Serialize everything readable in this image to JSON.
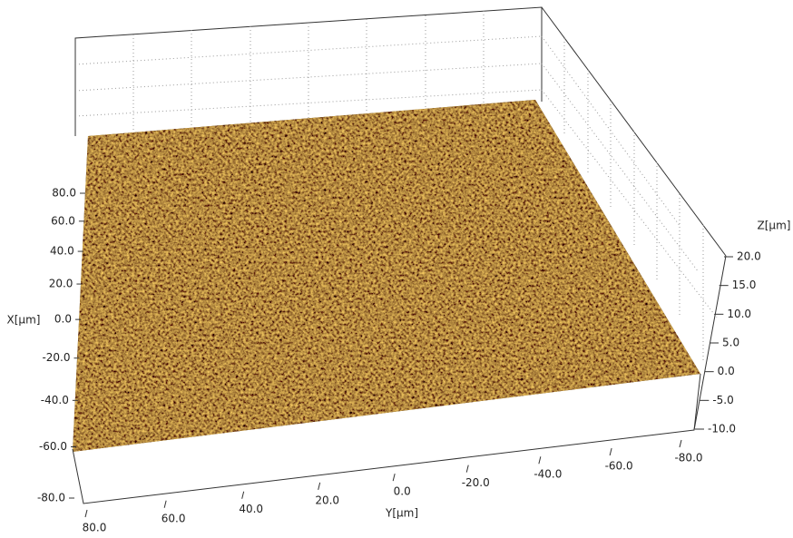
{
  "chart_data": {
    "type": "surface",
    "x_label": "X[μm]",
    "y_label": "Y[μm]",
    "z_label": "Z[μm]",
    "xlim": [
      -80,
      80
    ],
    "xticks": [
      {
        "value": -80,
        "label": "-80.0"
      },
      {
        "value": -60,
        "label": "-60.0"
      },
      {
        "value": -40,
        "label": "-40.0"
      },
      {
        "value": -20,
        "label": "-20.0"
      },
      {
        "value": 0,
        "label": "0.0"
      },
      {
        "value": 20,
        "label": "20.0"
      },
      {
        "value": 40,
        "label": "40.0"
      },
      {
        "value": 60,
        "label": "60.0"
      },
      {
        "value": 80,
        "label": "80.0"
      }
    ],
    "ylim": [
      -80,
      80
    ],
    "yticks": [
      {
        "value": 80,
        "label": "80.0"
      },
      {
        "value": 60,
        "label": "60.0"
      },
      {
        "value": 40,
        "label": "40.0"
      },
      {
        "value": 20,
        "label": "20.0"
      },
      {
        "value": 0,
        "label": "0.0"
      },
      {
        "value": -20,
        "label": "-20.0"
      },
      {
        "value": -40,
        "label": "-40.0"
      },
      {
        "value": -60,
        "label": "-60.0"
      },
      {
        "value": -80,
        "label": "-80.0"
      }
    ],
    "zlim": [
      -10,
      20
    ],
    "zticks": [
      {
        "value": -10,
        "label": "-10.0"
      },
      {
        "value": -5,
        "label": "-5.0"
      },
      {
        "value": 0,
        "label": "0.0"
      },
      {
        "value": 5,
        "label": "5.0"
      },
      {
        "value": 10,
        "label": "10.0"
      },
      {
        "value": 15,
        "label": "15.0"
      },
      {
        "value": 20,
        "label": "20.0"
      }
    ],
    "grid": true
  }
}
